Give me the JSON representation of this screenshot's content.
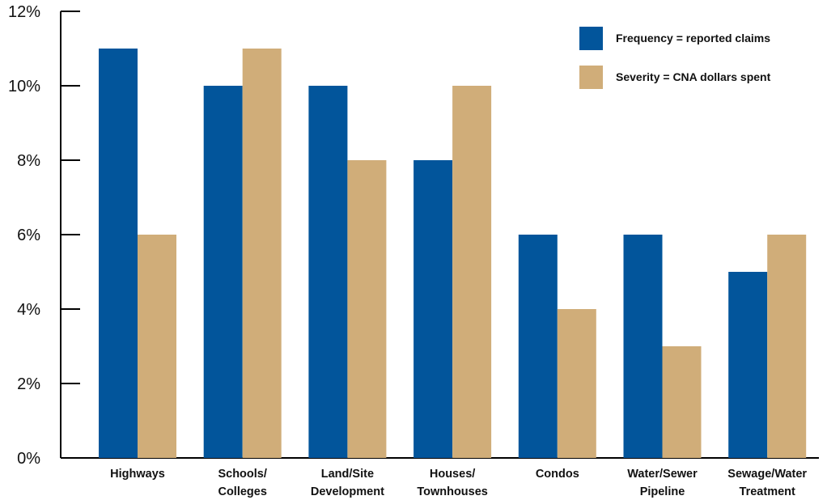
{
  "chart_data": {
    "type": "bar",
    "title": "",
    "xlabel": "",
    "ylabel": "",
    "ylim": [
      0,
      12
    ],
    "yticks": [
      "0%",
      "2%",
      "4%",
      "6%",
      "8%",
      "10%",
      "12%"
    ],
    "grid": false,
    "legend_position": "top-right",
    "categories": [
      [
        "Highways"
      ],
      [
        "Schools/",
        "Colleges"
      ],
      [
        "Land/Site",
        "Development"
      ],
      [
        "Houses/",
        "Townhouses"
      ],
      [
        "Condos"
      ],
      [
        "Water/Sewer",
        "Pipeline"
      ],
      [
        "Sewage/Water",
        "Treatment"
      ]
    ],
    "series": [
      {
        "name": "Frequency = reported claims",
        "color": "#02559b",
        "values": [
          11,
          10,
          10,
          8,
          6,
          6,
          5
        ]
      },
      {
        "name": "Severity = CNA dollars spent",
        "color": "#d0ad79",
        "values": [
          6,
          11,
          8,
          10,
          4,
          3,
          6
        ]
      }
    ]
  }
}
